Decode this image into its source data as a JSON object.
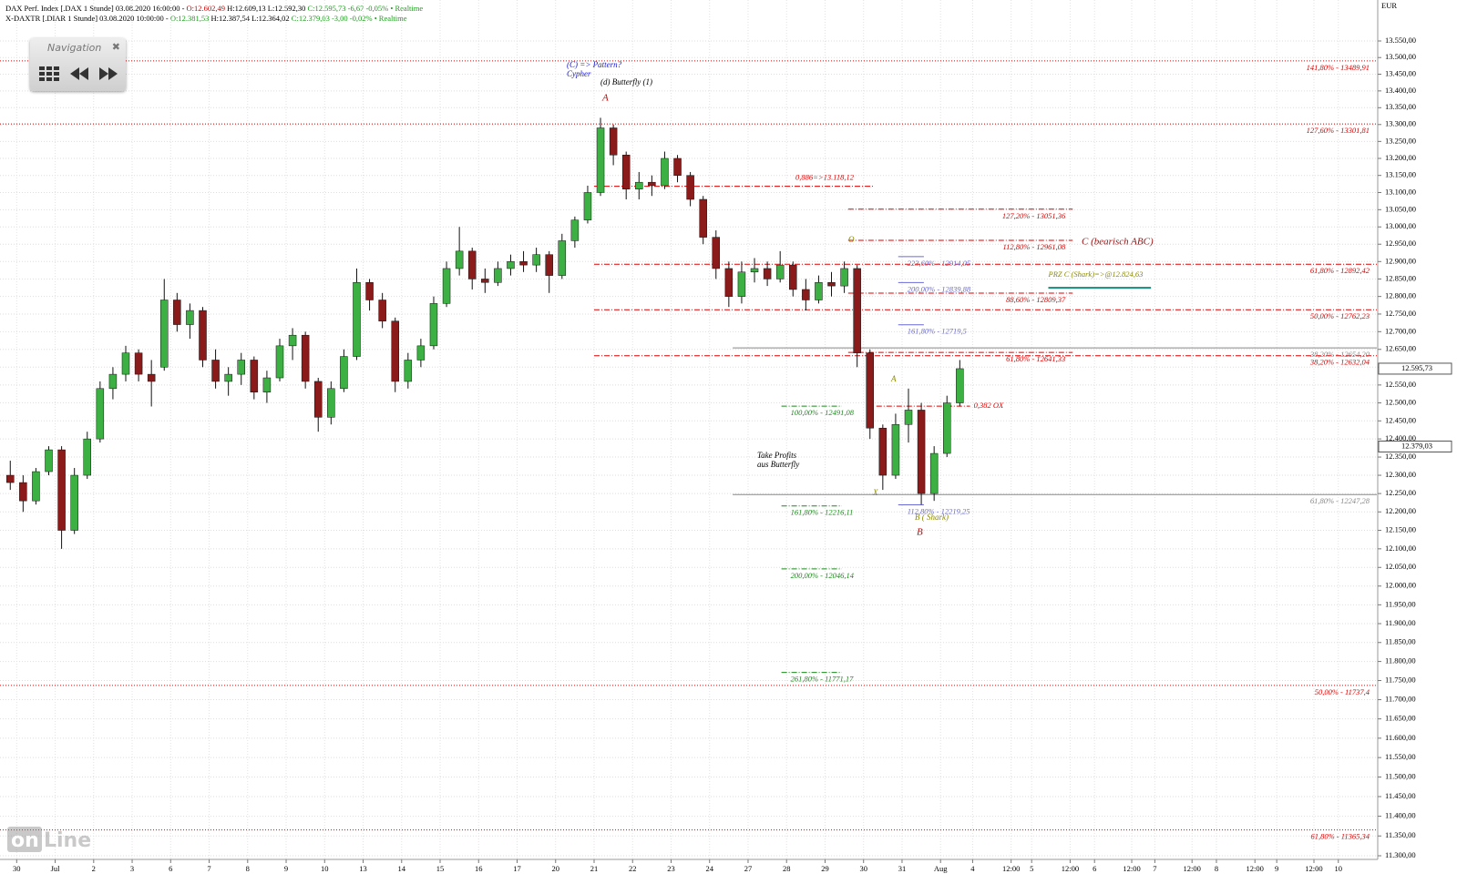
{
  "chart_data": {
    "type": "candlestick",
    "log_scale": true,
    "grid": true,
    "up_color": "#3cb043",
    "down_color": "#8b1a1a",
    "header": [
      [
        {
          "text": "DAX Perf. Index [.DAX 1 Stunde] 03.08.2020 16:00:00 - ",
          "color": "#000000"
        },
        {
          "text": "O:12.602,49",
          "color": "#d00000"
        },
        {
          "text": " H:12.609,13 L:12.592,30",
          "color": "#000000"
        },
        {
          "text": " C:12.595,73 -6,67 -0,05% • Realtime",
          "color": "#1a9a1a"
        }
      ],
      [
        {
          "text": "X-DAXTR [.DIAR 1 Stunde] 03.08.2020 10:00:00 - ",
          "color": "#000000"
        },
        {
          "text": "O:12.381,53",
          "color": "#1a9a1a"
        },
        {
          "text": " H:12.387,54 L:12.364,02",
          "color": "#000000"
        },
        {
          "text": " C:12.379,03 -3,00 -0,02% • Realtime",
          "color": "#1a9a1a"
        }
      ]
    ],
    "currency": "EUR",
    "navigation": "Navigation",
    "logo": [
      "on",
      "Line"
    ],
    "annotations": [
      "(C) => Pattern?",
      "Cypher",
      "(d) Butterfly (1)",
      "A",
      "C (bearisch ABC)",
      "O",
      "A",
      "X",
      "B ( Shark)",
      "B",
      "Take Profits",
      "aus Butterfly"
    ],
    "xlim": [
      -1.3,
      106
    ],
    "xticks": [
      {
        "value": 0,
        "label": "30"
      },
      {
        "value": 3,
        "label": "Jul"
      },
      {
        "value": 6,
        "label": "2"
      },
      {
        "value": 9,
        "label": "3"
      },
      {
        "value": 12,
        "label": "6"
      },
      {
        "value": 15,
        "label": "7"
      },
      {
        "value": 18,
        "label": "8"
      },
      {
        "value": 21,
        "label": "9"
      },
      {
        "value": 24,
        "label": "10"
      },
      {
        "value": 27,
        "label": "13"
      },
      {
        "value": 30,
        "label": "14"
      },
      {
        "value": 33,
        "label": "15"
      },
      {
        "value": 36,
        "label": "16"
      },
      {
        "value": 39,
        "label": "17"
      },
      {
        "value": 42,
        "label": "20"
      },
      {
        "value": 45,
        "label": "21"
      },
      {
        "value": 48,
        "label": "22"
      },
      {
        "value": 51,
        "label": "23"
      },
      {
        "value": 54,
        "label": "24"
      },
      {
        "value": 57,
        "label": "27"
      },
      {
        "value": 60,
        "label": "28"
      },
      {
        "value": 63,
        "label": "29"
      },
      {
        "value": 66,
        "label": "30"
      },
      {
        "value": 69,
        "label": "31"
      },
      {
        "value": 72,
        "label": "Aug"
      },
      {
        "value": 74.5,
        "label": "4"
      },
      {
        "value": 77.5,
        "label": "12:00"
      },
      {
        "value": 79.1,
        "label": "5"
      },
      {
        "value": 82.1,
        "label": "12:00"
      },
      {
        "value": 84,
        "label": "6"
      },
      {
        "value": 86.9,
        "label": "12:00"
      },
      {
        "value": 88.7,
        "label": "7"
      },
      {
        "value": 91.6,
        "label": "12:00"
      },
      {
        "value": 93.5,
        "label": "8"
      },
      {
        "value": 96.5,
        "label": "12:00"
      },
      {
        "value": 98.2,
        "label": "9"
      },
      {
        "value": 101.1,
        "label": "12:00"
      },
      {
        "value": 103,
        "label": "10"
      }
    ],
    "ylim": [
      11300,
      13550
    ],
    "yticks": [
      {
        "value": 13550,
        "label": "13.550,00"
      },
      {
        "value": 13500,
        "label": "13.500,00"
      },
      {
        "value": 13450,
        "label": "13.450,00"
      },
      {
        "value": 13400,
        "label": "13.400,00"
      },
      {
        "value": 13350,
        "label": "13.350,00"
      },
      {
        "value": 13300,
        "label": "13.300,00"
      },
      {
        "value": 13250,
        "label": "13.250,00"
      },
      {
        "value": 13200,
        "label": "13.200,00"
      },
      {
        "value": 13150,
        "label": "13.150,00"
      },
      {
        "value": 13100,
        "label": "13.100,00"
      },
      {
        "value": 13050,
        "label": "13.050,00"
      },
      {
        "value": 13000,
        "label": "13.000,00"
      },
      {
        "value": 12950,
        "label": "12.950,00"
      },
      {
        "value": 12900,
        "label": "12.900,00"
      },
      {
        "value": 12850,
        "label": "12.850,00"
      },
      {
        "value": 12800,
        "label": "12.800,00"
      },
      {
        "value": 12750,
        "label": "12.750,00"
      },
      {
        "value": 12700,
        "label": "12.700,00"
      },
      {
        "value": 12650,
        "label": "12.650,00"
      },
      {
        "value": 12600,
        "label": "12.600,00"
      },
      {
        "value": 12550,
        "label": "12.550,00"
      },
      {
        "value": 12500,
        "label": "12.500,00"
      },
      {
        "value": 12450,
        "label": "12.450,00"
      },
      {
        "value": 12400,
        "label": "12.400,00"
      },
      {
        "value": 12350,
        "label": "12.350,00"
      },
      {
        "value": 12300,
        "label": "12.300,00"
      },
      {
        "value": 12250,
        "label": "12.250,00"
      },
      {
        "value": 12200,
        "label": "12.200,00"
      },
      {
        "value": 12150,
        "label": "12.150,00"
      },
      {
        "value": 12100,
        "label": "12.100,00"
      },
      {
        "value": 12050,
        "label": "12.050,00"
      },
      {
        "value": 12000,
        "label": "12.000,00"
      },
      {
        "value": 11950,
        "label": "11.950,00"
      },
      {
        "value": 11900,
        "label": "11.900,00"
      },
      {
        "value": 11850,
        "label": "11.850,00"
      },
      {
        "value": 11800,
        "label": "11.800,00"
      },
      {
        "value": 11750,
        "label": "11.750,00"
      },
      {
        "value": 11700,
        "label": "11.700,00"
      },
      {
        "value": 11650,
        "label": "11.650,00"
      },
      {
        "value": 11600,
        "label": "11.600,00"
      },
      {
        "value": 11550,
        "label": "11.550,00"
      },
      {
        "value": 11500,
        "label": "11.500,00"
      },
      {
        "value": 11450,
        "label": "11.450,00"
      },
      {
        "value": 11400,
        "label": "11.400,00"
      },
      {
        "value": 11350,
        "label": "11.350,00"
      },
      {
        "value": 11300,
        "label": "11.300,00"
      }
    ],
    "candles": [
      [
        12300,
        12340,
        12260,
        12280
      ],
      [
        12280,
        12300,
        12200,
        12230
      ],
      [
        12230,
        12320,
        12220,
        12310
      ],
      [
        12310,
        12380,
        12300,
        12370
      ],
      [
        12370,
        12380,
        12100,
        12150
      ],
      [
        12150,
        12320,
        12140,
        12300
      ],
      [
        12300,
        12420,
        12290,
        12400
      ],
      [
        12400,
        12560,
        12390,
        12540
      ],
      [
        12540,
        12600,
        12510,
        12580
      ],
      [
        12580,
        12660,
        12560,
        12640
      ],
      [
        12640,
        12650,
        12560,
        12580
      ],
      [
        12580,
        12620,
        12490,
        12560
      ],
      [
        12600,
        12850,
        12590,
        12790
      ],
      [
        12790,
        12810,
        12700,
        12720
      ],
      [
        12720,
        12780,
        12680,
        12760
      ],
      [
        12760,
        12770,
        12600,
        12620
      ],
      [
        12620,
        12650,
        12540,
        12560
      ],
      [
        12560,
        12600,
        12520,
        12580
      ],
      [
        12580,
        12640,
        12550,
        12620
      ],
      [
        12620,
        12630,
        12510,
        12530
      ],
      [
        12530,
        12590,
        12500,
        12570
      ],
      [
        12570,
        12680,
        12560,
        12660
      ],
      [
        12660,
        12710,
        12620,
        12690
      ],
      [
        12690,
        12700,
        12540,
        12560
      ],
      [
        12560,
        12570,
        12420,
        12460
      ],
      [
        12460,
        12560,
        12440,
        12540
      ],
      [
        12540,
        12650,
        12530,
        12630
      ],
      [
        12630,
        12880,
        12620,
        12840
      ],
      [
        12840,
        12850,
        12760,
        12790
      ],
      [
        12790,
        12810,
        12710,
        12730
      ],
      [
        12730,
        12740,
        12530,
        12560
      ],
      [
        12560,
        12640,
        12540,
        12620
      ],
      [
        12620,
        12680,
        12600,
        12660
      ],
      [
        12660,
        12800,
        12650,
        12780
      ],
      [
        12780,
        12900,
        12770,
        12880
      ],
      [
        12880,
        13000,
        12860,
        12930
      ],
      [
        12930,
        12940,
        12820,
        12850
      ],
      [
        12850,
        12880,
        12810,
        12840
      ],
      [
        12840,
        12900,
        12830,
        12880
      ],
      [
        12880,
        12920,
        12860,
        12900
      ],
      [
        12900,
        12930,
        12870,
        12890
      ],
      [
        12890,
        12940,
        12870,
        12920
      ],
      [
        12920,
        12930,
        12810,
        12860
      ],
      [
        12860,
        12980,
        12850,
        12960
      ],
      [
        12960,
        13030,
        12940,
        13020
      ],
      [
        13020,
        13120,
        13010,
        13100
      ],
      [
        13100,
        13320,
        13090,
        13290
      ],
      [
        13290,
        13300,
        13180,
        13210
      ],
      [
        13210,
        13220,
        13080,
        13110
      ],
      [
        13110,
        13160,
        13080,
        13130
      ],
      [
        13130,
        13150,
        13090,
        13120
      ],
      [
        13120,
        13220,
        13110,
        13200
      ],
      [
        13200,
        13210,
        13130,
        13150
      ],
      [
        13150,
        13160,
        13060,
        13080
      ],
      [
        13080,
        13090,
        12950,
        12970
      ],
      [
        12970,
        12990,
        12850,
        12880
      ],
      [
        12880,
        12900,
        12770,
        12800
      ],
      [
        12800,
        12900,
        12780,
        12870
      ],
      [
        12870,
        12910,
        12840,
        12880
      ],
      [
        12880,
        12900,
        12830,
        12850
      ],
      [
        12850,
        12930,
        12840,
        12890
      ],
      [
        12890,
        12900,
        12800,
        12820
      ],
      [
        12820,
        12850,
        12760,
        12790
      ],
      [
        12790,
        12860,
        12780,
        12840
      ],
      [
        12840,
        12870,
        12800,
        12830
      ],
      [
        12830,
        12900,
        12810,
        12880
      ],
      [
        12880,
        12890,
        12600,
        12640
      ],
      [
        12640,
        12650,
        12400,
        12430
      ],
      [
        12430,
        12440,
        12260,
        12300
      ],
      [
        12300,
        12470,
        12290,
        12440
      ],
      [
        12440,
        12540,
        12390,
        12480
      ],
      [
        12480,
        12500,
        12220,
        12250
      ],
      [
        12250,
        12380,
        12230,
        12360
      ],
      [
        12360,
        12520,
        12350,
        12500
      ],
      [
        12500,
        12620,
        12490,
        12595.73
      ]
    ],
    "levels": [
      {
        "value": 13489.91,
        "label": "141,80% - 13489,91",
        "from": -1.3,
        "to": 106,
        "color": "#e00000",
        "style": "dotted",
        "label_pos": "end-below"
      },
      {
        "value": 13301.81,
        "label": "127,60% - 13301,81",
        "from": -1.3,
        "to": 106,
        "color": "#e00000",
        "style": "dotted",
        "label_pos": "end-below"
      },
      {
        "value": 11737.4,
        "label": "50,00% - 11737,4",
        "from": -1.3,
        "to": 106,
        "color": "#e00000",
        "style": "dotted",
        "label_pos": "end-below"
      },
      {
        "value": 11365.34,
        "label": "61,80% - 11365,34",
        "from": -1.3,
        "to": 106,
        "color": "#e00000",
        "style": "dotted",
        "label_pos": "end-below"
      },
      {
        "value": 12892.42,
        "label": "61,80% - 12892,42",
        "from": 45,
        "to": 106,
        "color": "#e00000",
        "style": "dashdot",
        "label_pos": "end-below"
      },
      {
        "value": 12762.23,
        "label": "50,00% - 12762,23",
        "from": 45,
        "to": 106,
        "color": "#e00000",
        "style": "dashdot",
        "label_pos": "end-below"
      },
      {
        "value": 12632.04,
        "label": "38,20% - 12632,04",
        "from": 45,
        "to": 106,
        "color": "#e00000",
        "style": "dashdot",
        "label_pos": "end-below"
      },
      {
        "value": 13118.12,
        "label": "0,886=>13.118,12",
        "from": 45,
        "to": 66.8,
        "color": "#e00000",
        "style": "dashdot",
        "label_pos": "end-above"
      },
      {
        "value": 13051.36,
        "label": "127,20% - 13051,36",
        "from": 64.8,
        "to": 82.3,
        "color": "#e00000",
        "style": "dashdot",
        "label_pos": "end-below"
      },
      {
        "value": 12961.08,
        "label": "112,80% - 12961,08",
        "from": 64.8,
        "to": 82.3,
        "color": "#e00000",
        "style": "dashdot",
        "label_pos": "end-below"
      },
      {
        "value": 12809.37,
        "label": "88,60% - 12809,37",
        "from": 64.8,
        "to": 82.3,
        "color": "#e00000",
        "style": "dashdot",
        "label_pos": "end-below"
      },
      {
        "value": 12641.33,
        "label": "61,80% - 12641,33",
        "from": 64.8,
        "to": 82.3,
        "color": "#e00000",
        "style": "dashdot",
        "label_pos": "end-below"
      },
      {
        "value": 12491,
        "label": "0,382 OX",
        "from": 67,
        "to": 74.3,
        "color": "#e00000",
        "style": "dashdot",
        "label_pos": "after"
      },
      {
        "value": 12654.2,
        "label": "38,20% - 12654,20",
        "from": 55.8,
        "to": 106,
        "color": "#888888",
        "style": "solid",
        "label_pos": "end-below"
      },
      {
        "value": 12247.28,
        "label": "61,80% - 12247,28",
        "from": 55.8,
        "to": 106,
        "color": "#888888",
        "style": "solid",
        "label_pos": "end-below"
      },
      {
        "value": 12914.05,
        "label": "223,60% - 12914,05",
        "from": 68.7,
        "to": 70.7,
        "color": "#6a6ad8",
        "style": "solid",
        "label_pos": "start-below"
      },
      {
        "value": 12839.88,
        "label": "200,00% - 12839,88",
        "from": 68.7,
        "to": 70.7,
        "color": "#6a6ad8",
        "style": "solid",
        "label_pos": "start-below"
      },
      {
        "value": 12719.5,
        "label": "161,80% - 12719,5",
        "from": 68.7,
        "to": 70.7,
        "color": "#6a6ad8",
        "style": "solid",
        "label_pos": "start-below"
      },
      {
        "value": 12219.25,
        "label": "112,80% - 12219,25",
        "from": 68.7,
        "to": 70.7,
        "color": "#6a6ad8",
        "style": "solid",
        "label_pos": "start-below"
      },
      {
        "value": 12491.08,
        "label": "100,00% - 12491,08",
        "from": 59.6,
        "to": 64.3,
        "color": "#1a8a1a",
        "style": "dashdot",
        "label_pos": "start-below"
      },
      {
        "value": 12216.11,
        "label": "161,80% - 12216,11",
        "from": 59.6,
        "to": 64.3,
        "color": "#1a8a1a",
        "style": "dashdot",
        "label_pos": "start-below"
      },
      {
        "value": 12046.14,
        "label": "200,00% - 12046,14",
        "from": 59.6,
        "to": 64.3,
        "color": "#1a8a1a",
        "style": "dashdot",
        "label_pos": "start-below"
      },
      {
        "value": 11771.17,
        "label": "261,80% - 11771,17",
        "from": 59.6,
        "to": 64.3,
        "color": "#1a8a1a",
        "style": "dashdot",
        "label_pos": "start-below"
      },
      {
        "value": 12824.63,
        "label": "PRZ C (Shark)=>@12.824,63",
        "from": 80.4,
        "to": 88.4,
        "color": "#1a8a7a",
        "style": "thick",
        "label_pos": "start-above"
      }
    ],
    "price_markers": [
      {
        "value": 12595.73,
        "label": "12.595,73"
      },
      {
        "value": 12379.03,
        "label": "12.379,03"
      }
    ]
  }
}
